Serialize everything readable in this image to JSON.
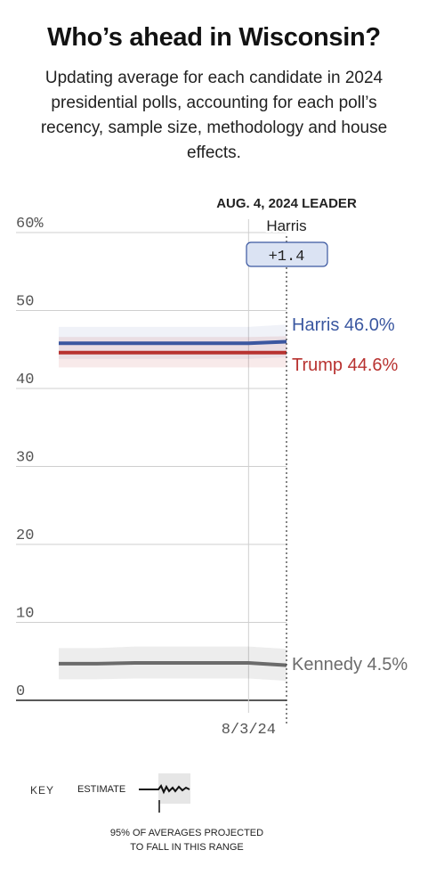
{
  "title": "Who’s ahead in Wisconsin?",
  "subtitle": "Updating average for each candidate in 2024 presidential polls, accounting for each poll’s recency, sample size, methodology and house effects.",
  "leader_header": "AUG. 4, 2024 LEADER",
  "leader_name": "Harris",
  "leader_margin": "+1.4",
  "key": {
    "label": "KEY",
    "estimate": "ESTIMATE",
    "range_line1": "95% OF AVERAGES PROJECTED",
    "range_line2": "TO FALL IN THIS RANGE"
  },
  "colors": {
    "harris": "#3a57a0",
    "trump": "#b83230",
    "kennedy": "#6b6b6b"
  },
  "chart_data": {
    "type": "line",
    "ylim": [
      0,
      60
    ],
    "y_ticks": [
      "0",
      "10",
      "20",
      "30",
      "40",
      "50",
      "60%"
    ],
    "x_tick_labels": [
      "8/3/24"
    ],
    "x": [
      "7/29/24",
      "7/30/24",
      "7/31/24",
      "8/1/24",
      "8/2/24",
      "8/3/24",
      "8/4/24"
    ],
    "series": [
      {
        "name": "Harris",
        "end_label": "Harris 46.0%",
        "color": "#3a57a0",
        "values": [
          45.8,
          45.8,
          45.8,
          45.8,
          45.8,
          45.8,
          46.0
        ],
        "band_low": [
          43.8,
          43.8,
          43.8,
          43.8,
          43.8,
          43.8,
          44.0
        ],
        "band_high": [
          47.9,
          47.9,
          47.9,
          47.9,
          47.9,
          47.9,
          48.2
        ]
      },
      {
        "name": "Trump",
        "end_label": "Trump 44.6%",
        "color": "#b83230",
        "values": [
          44.6,
          44.6,
          44.6,
          44.6,
          44.6,
          44.6,
          44.6
        ],
        "band_low": [
          42.7,
          42.7,
          42.7,
          42.7,
          42.7,
          42.7,
          42.7
        ],
        "band_high": [
          46.6,
          46.6,
          46.6,
          46.6,
          46.6,
          46.6,
          46.7
        ]
      },
      {
        "name": "Kennedy",
        "end_label": "Kennedy 4.5%",
        "color": "#6b6b6b",
        "values": [
          4.7,
          4.7,
          4.8,
          4.8,
          4.8,
          4.8,
          4.5
        ],
        "band_low": [
          2.7,
          2.7,
          2.8,
          2.8,
          2.8,
          2.8,
          2.5
        ],
        "band_high": [
          6.7,
          6.7,
          6.9,
          6.9,
          6.9,
          6.9,
          6.6
        ]
      }
    ]
  }
}
